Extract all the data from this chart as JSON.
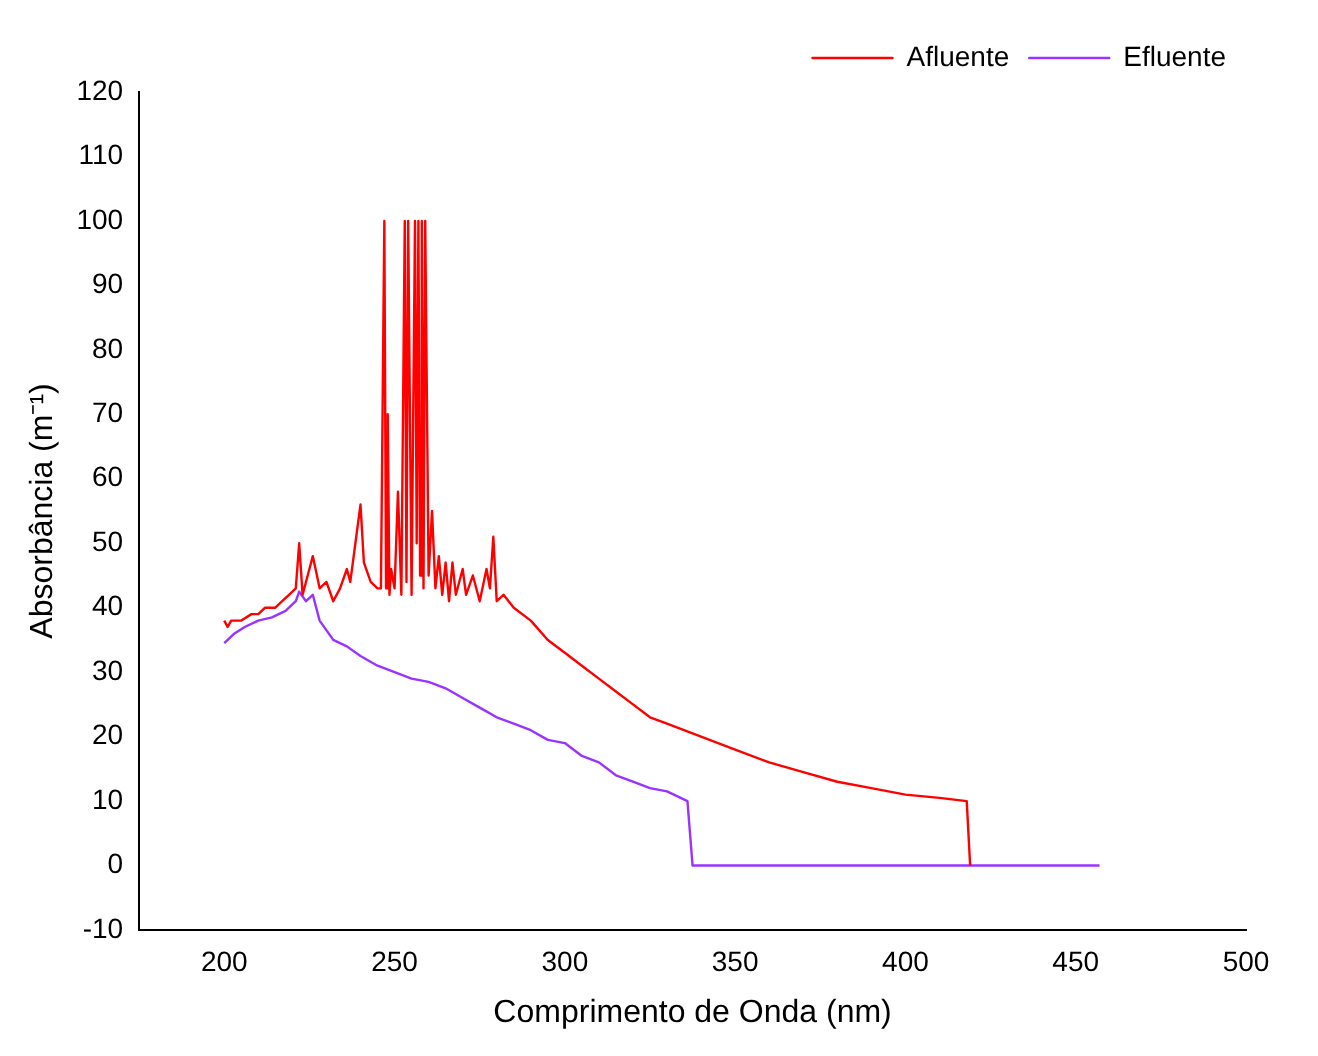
{
  "chart_data": {
    "type": "line",
    "xlabel": "Comprimento de Onda (nm)",
    "ylabel": "Absorbância (m⁻¹)",
    "xlim": [
      175,
      500
    ],
    "xticks": [
      200,
      250,
      300,
      350,
      400,
      450,
      500
    ],
    "ylim": [
      -10,
      120
    ],
    "yticks": [
      -10,
      0,
      10,
      20,
      30,
      40,
      50,
      60,
      70,
      80,
      90,
      100,
      110,
      120
    ],
    "grid": false,
    "legend": "top right",
    "marker": "none",
    "line_style": "solid",
    "series": [
      {
        "name": "Afluente",
        "color": "#ff0000",
        "x": [
          200,
          201,
          202,
          205,
          208,
          210,
          212,
          215,
          217,
          219,
          221,
          222,
          223,
          225,
          226,
          228,
          230,
          232,
          234,
          236,
          237,
          238,
          240,
          241,
          243,
          245,
          246,
          247,
          247.5,
          248,
          248.5,
          249,
          250,
          251,
          252,
          253,
          253.5,
          254,
          255,
          256,
          256.5,
          257,
          257.5,
          258,
          258.5,
          259,
          260,
          261,
          262,
          263,
          264,
          265,
          266,
          267,
          268,
          270,
          271,
          273,
          275,
          277,
          278,
          279,
          280,
          282,
          285,
          290,
          295,
          300,
          305,
          310,
          315,
          320,
          325,
          330,
          335,
          340,
          350,
          360,
          370,
          380,
          390,
          400,
          410,
          418,
          419
        ],
        "values": [
          38,
          37,
          38,
          38,
          39,
          39,
          40,
          40,
          41,
          42,
          43,
          50,
          42,
          46,
          48,
          43,
          44,
          41,
          43,
          46,
          44,
          48,
          56,
          47,
          44,
          43,
          43,
          100,
          43,
          70,
          42,
          46,
          43,
          58,
          42,
          100,
          44,
          100,
          42,
          100,
          50,
          100,
          45,
          100,
          43,
          100,
          45,
          55,
          43,
          48,
          42,
          47,
          41,
          47,
          42,
          46,
          42,
          45,
          41,
          46,
          43,
          51,
          41,
          42,
          40,
          38,
          35,
          33,
          31,
          29,
          27,
          25,
          23,
          22,
          21,
          20,
          18,
          16,
          14.5,
          13,
          12,
          11,
          10.5,
          10,
          0
        ]
      },
      {
        "name": "Efluente",
        "color": "#9933ff",
        "x": [
          200,
          203,
          206,
          210,
          214,
          218,
          221,
          222,
          224,
          226,
          228,
          232,
          236,
          240,
          245,
          250,
          255,
          260,
          265,
          270,
          275,
          280,
          285,
          290,
          295,
          300,
          305,
          310,
          315,
          320,
          325,
          330,
          336,
          337.5,
          457
        ],
        "values": [
          34.5,
          36,
          37,
          38,
          38.5,
          39.5,
          41,
          42.5,
          41,
          42,
          38,
          35,
          34,
          32.5,
          31,
          30,
          29,
          28.5,
          27.5,
          26,
          24.5,
          23,
          22,
          21,
          19.5,
          19,
          17,
          16,
          14,
          13,
          12,
          11.5,
          10,
          0,
          0
        ]
      }
    ]
  }
}
